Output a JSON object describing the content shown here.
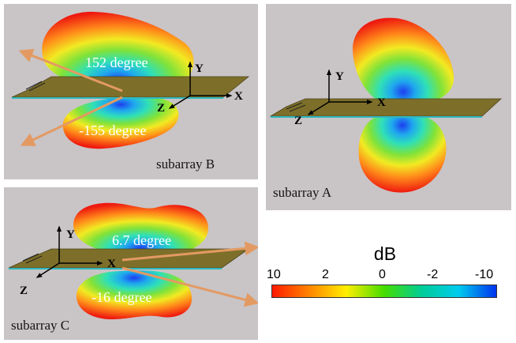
{
  "panels": {
    "b": {
      "label": "subarray B",
      "angle_top": "152 degree",
      "angle_bottom": "-155 degree"
    },
    "a": {
      "label": "subarray A"
    },
    "c": {
      "label": "subarray C",
      "angle_top": "6.7 degree",
      "angle_bottom": "-16 degree"
    }
  },
  "axes": {
    "x": "X",
    "y": "Y",
    "z": "Z"
  },
  "legend": {
    "title": "dB",
    "ticks": [
      "10",
      "2",
      "0",
      "-2",
      "-10"
    ],
    "colors": [
      "#ff1a00",
      "#ff8800",
      "#ffee00",
      "#44dd00",
      "#00cc99",
      "#00ccee",
      "#0033ee"
    ]
  },
  "colors": {
    "background": "#c9c4c6",
    "substrate": "#7d6f2a",
    "arrow": "#e39a62"
  }
}
